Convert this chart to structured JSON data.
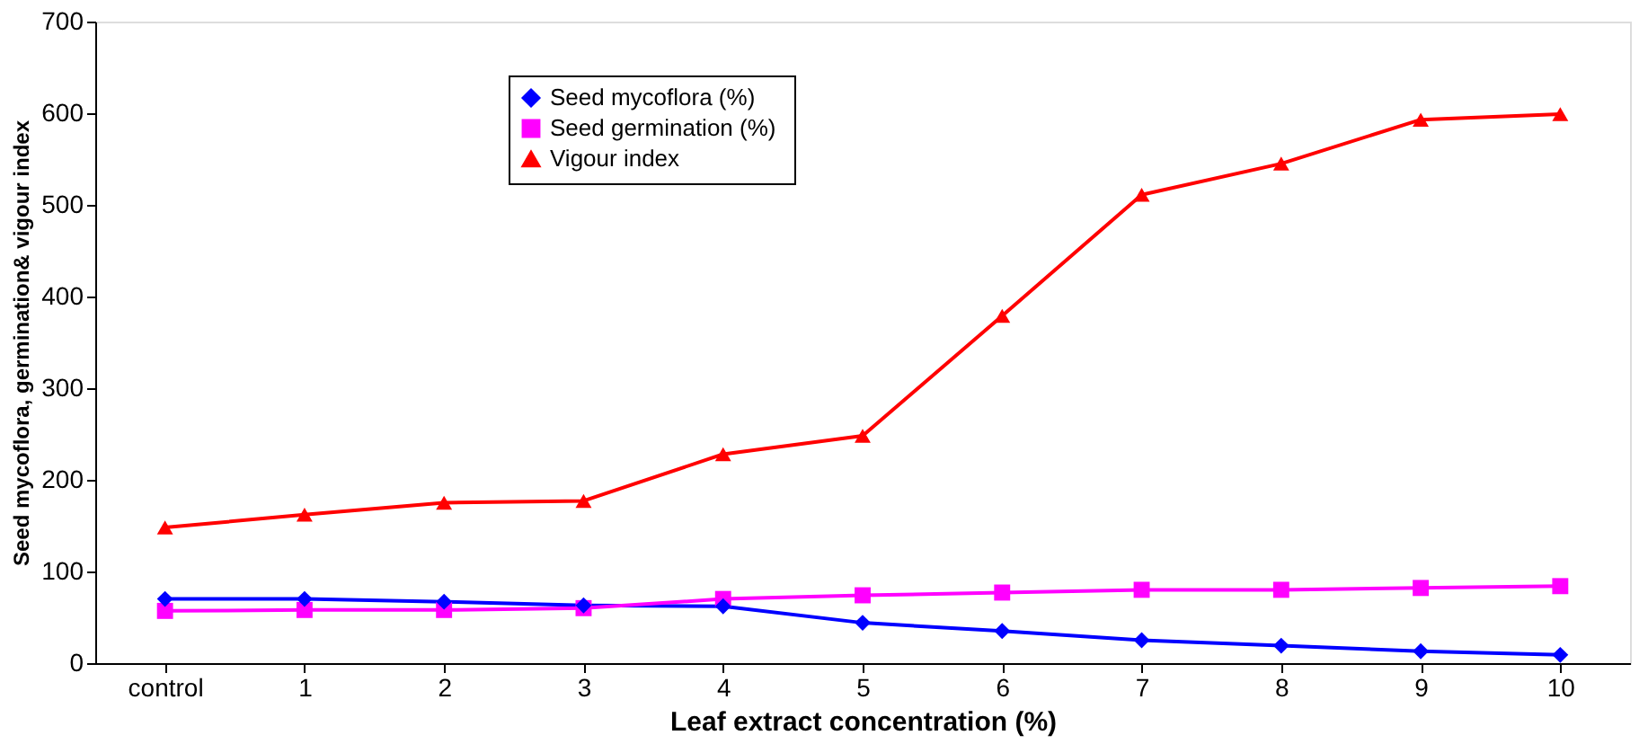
{
  "chart_data": {
    "type": "line",
    "xlabel": "Leaf extract concentration (%)",
    "ylabel": "Seed mycoflora, germination& vigour index",
    "categories": [
      "control",
      "1",
      "2",
      "3",
      "4",
      "5",
      "6",
      "7",
      "8",
      "9",
      "10"
    ],
    "series": [
      {
        "name": "Seed  mycoflora  (%)",
        "color": "#0000ff",
        "marker": "diamond",
        "values": [
          70,
          70,
          67,
          63,
          62,
          44,
          35,
          25,
          19,
          13,
          9
        ]
      },
      {
        "name": "Seed germination  (%)",
        "color": "#ff00ff",
        "marker": "square",
        "values": [
          57,
          58,
          58,
          60,
          70,
          74,
          77,
          80,
          80,
          82,
          84
        ]
      },
      {
        "name": "Vigour index",
        "color": "#ff0000",
        "marker": "triangle",
        "values": [
          148,
          162,
          175,
          177,
          228,
          248,
          379,
          511,
          545,
          593,
          599
        ]
      }
    ],
    "ylim": [
      0,
      700
    ],
    "yticks": [
      0,
      100,
      200,
      300,
      400,
      500,
      600,
      700
    ],
    "grid": false,
    "legend": "top left",
    "line_style": "solid"
  }
}
